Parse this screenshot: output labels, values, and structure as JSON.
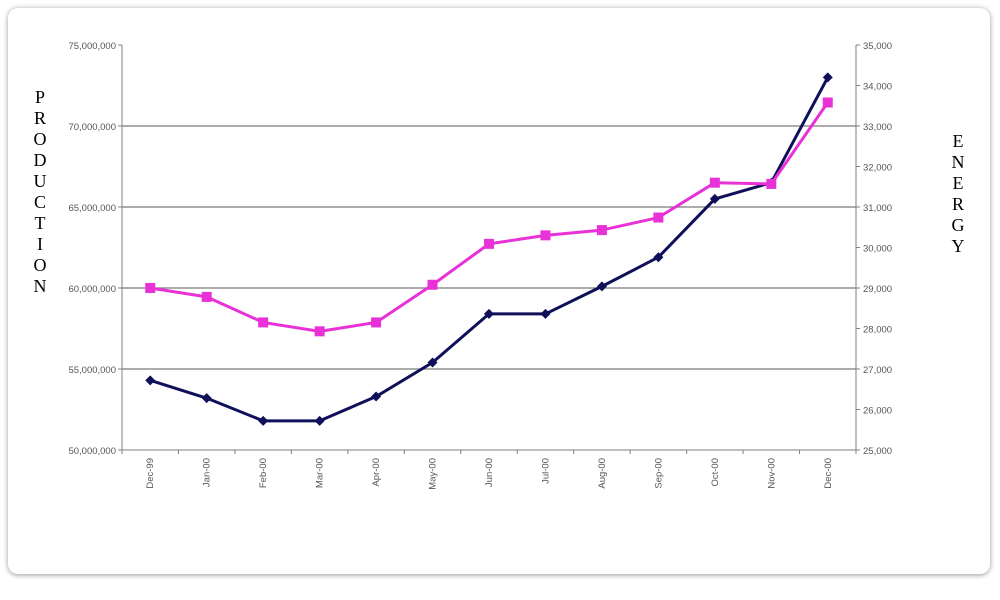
{
  "chart_data": {
    "type": "line",
    "title": "",
    "xlabel": "",
    "ylabel_left": "PRODUCTION",
    "ylabel_right": "ENERGY",
    "categories": [
      "Dec-99",
      "Jan-00",
      "Feb-00",
      "Mar-00",
      "Apr-00",
      "May-00",
      "Jun-00",
      "Jul-00",
      "Aug-00",
      "Sep-00",
      "Oct-00",
      "Nov-00",
      "Dec-00"
    ],
    "ylim_left": [
      50000000,
      75000000
    ],
    "ylim_right": [
      25000,
      35000
    ],
    "yticks_left": [
      "50,000,000",
      "55,000,000",
      "60,000,000",
      "65,000,000",
      "70,000,000",
      "75,000,000"
    ],
    "yticks_right": [
      "25,000",
      "26,000",
      "27,000",
      "28,000",
      "29,000",
      "30,000",
      "31,000",
      "32,000",
      "33,000",
      "34,000",
      "35,000"
    ],
    "grid": true,
    "legend": "none",
    "series": [
      {
        "axis": "left",
        "marker": "diamond",
        "color": "#0f0f5a",
        "values": [
          54300000,
          53200000,
          51800000,
          51800000,
          53300000,
          55400000,
          58400000,
          58400000,
          60100000,
          61900000,
          65500000,
          66500000,
          73000000
        ]
      },
      {
        "axis": "right",
        "marker": "square",
        "color": "#e832d8",
        "values": [
          29000,
          28780,
          28150,
          27930,
          28150,
          29080,
          30090,
          30300,
          30430,
          30740,
          31600,
          31570,
          33580
        ]
      }
    ]
  }
}
